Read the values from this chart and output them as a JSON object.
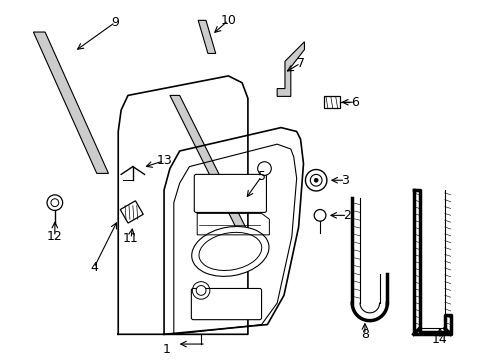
{
  "bg_color": "#ffffff",
  "line_color": "#000000",
  "fig_width": 4.89,
  "fig_height": 3.6,
  "dpi": 100
}
